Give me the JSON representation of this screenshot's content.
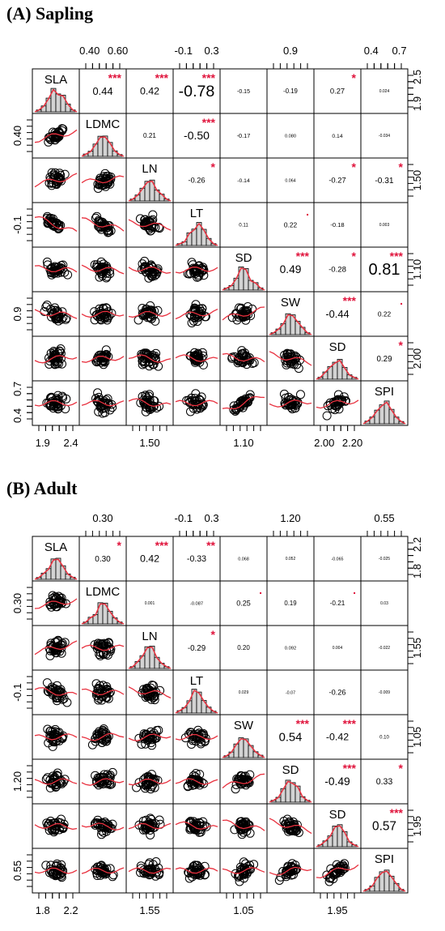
{
  "chart_data": [
    {
      "type": "scatter-matrix",
      "title": "(A) Sapling",
      "variables": [
        "SLA",
        "LDMC",
        "LN",
        "LT",
        "SD",
        "SW",
        "SD",
        "SPI"
      ],
      "top_axis_ticks": {
        "1": [
          "0.40",
          "0.60"
        ],
        "3": [
          "-0.1",
          "0.3"
        ],
        "5": [
          "0.9"
        ],
        "7": [
          "0.4",
          "0.7"
        ]
      },
      "bottom_axis_ticks": {
        "0": [
          "1.9",
          "2.4"
        ],
        "2": [
          "1.50"
        ],
        "4": [
          "1.10"
        ],
        "6": [
          "2.00",
          "2.20"
        ]
      },
      "left_axis_ticks": {
        "1": [
          "0.40"
        ],
        "3": [
          "-0.1"
        ],
        "5": [
          "0.9"
        ],
        "7": [
          "0.4",
          "0.7"
        ]
      },
      "right_axis_ticks": {
        "0": [
          "1.9",
          "2.5"
        ],
        "2": [
          "1.50"
        ],
        "4": [
          "1.10"
        ],
        "6": [
          "2.00"
        ]
      },
      "correlations": [
        {
          "row": 0,
          "col": 1,
          "r": "0.44",
          "stars": "***"
        },
        {
          "row": 0,
          "col": 2,
          "r": "0.42",
          "stars": "***"
        },
        {
          "row": 0,
          "col": 3,
          "r": "-0.78",
          "stars": "***"
        },
        {
          "row": 0,
          "col": 4,
          "r": "-0.15",
          "stars": ""
        },
        {
          "row": 0,
          "col": 5,
          "r": "-0.19",
          "stars": ""
        },
        {
          "row": 0,
          "col": 6,
          "r": "0.27",
          "stars": "*"
        },
        {
          "row": 0,
          "col": 7,
          "r": "0.024",
          "stars": ""
        },
        {
          "row": 1,
          "col": 2,
          "r": "0.21",
          "stars": ""
        },
        {
          "row": 1,
          "col": 3,
          "r": "-0.50",
          "stars": "***"
        },
        {
          "row": 1,
          "col": 4,
          "r": "-0.17",
          "stars": ""
        },
        {
          "row": 1,
          "col": 5,
          "r": "0.080",
          "stars": ""
        },
        {
          "row": 1,
          "col": 6,
          "r": "0.14",
          "stars": ""
        },
        {
          "row": 1,
          "col": 7,
          "r": "-0.034",
          "stars": ""
        },
        {
          "row": 2,
          "col": 3,
          "r": "-0.26",
          "stars": "*"
        },
        {
          "row": 2,
          "col": 4,
          "r": "-0.14",
          "stars": ""
        },
        {
          "row": 2,
          "col": 5,
          "r": "0.064",
          "stars": ""
        },
        {
          "row": 2,
          "col": 6,
          "r": "-0.27",
          "stars": "*"
        },
        {
          "row": 2,
          "col": 7,
          "r": "-0.31",
          "stars": "*"
        },
        {
          "row": 3,
          "col": 4,
          "r": "0.11",
          "stars": ""
        },
        {
          "row": 3,
          "col": 5,
          "r": "0.22",
          "stars": "."
        },
        {
          "row": 3,
          "col": 6,
          "r": "-0.18",
          "stars": ""
        },
        {
          "row": 3,
          "col": 7,
          "r": "0.003",
          "stars": ""
        },
        {
          "row": 4,
          "col": 5,
          "r": "0.49",
          "stars": "***"
        },
        {
          "row": 4,
          "col": 6,
          "r": "-0.28",
          "stars": "*"
        },
        {
          "row": 4,
          "col": 7,
          "r": "0.81",
          "stars": "***"
        },
        {
          "row": 5,
          "col": 6,
          "r": "-0.44",
          "stars": "***"
        },
        {
          "row": 5,
          "col": 7,
          "r": "0.22",
          "stars": "."
        },
        {
          "row": 6,
          "col": 7,
          "r": "0.29",
          "stars": "*"
        }
      ]
    },
    {
      "type": "scatter-matrix",
      "title": "(B) Adult",
      "variables": [
        "SLA",
        "LDMC",
        "LN",
        "LT",
        "SW",
        "SD",
        "SD",
        "SPI"
      ],
      "top_axis_ticks": {
        "1": [
          "0.30"
        ],
        "3": [
          "-0.1",
          "0.3"
        ],
        "5": [
          "1.20"
        ],
        "7": [
          "0.55"
        ]
      },
      "bottom_axis_ticks": {
        "0": [
          "1.8",
          "2.2"
        ],
        "2": [
          "1.55"
        ],
        "4": [
          "1.05"
        ],
        "6": [
          "1.95"
        ]
      },
      "left_axis_ticks": {
        "1": [
          "0.30"
        ],
        "3": [
          "-0.1"
        ],
        "5": [
          "1.20"
        ],
        "7": [
          "0.55"
        ]
      },
      "right_axis_ticks": {
        "0": [
          "1.8",
          "2.2"
        ],
        "2": [
          "1.55"
        ],
        "4": [
          "1.05"
        ],
        "6": [
          "1.95"
        ]
      },
      "correlations": [
        {
          "row": 0,
          "col": 1,
          "r": "0.30",
          "stars": "*"
        },
        {
          "row": 0,
          "col": 2,
          "r": "0.42",
          "stars": "***"
        },
        {
          "row": 0,
          "col": 3,
          "r": "-0.33",
          "stars": "**"
        },
        {
          "row": 0,
          "col": 4,
          "r": "0.068",
          "stars": ""
        },
        {
          "row": 0,
          "col": 5,
          "r": "0.052",
          "stars": ""
        },
        {
          "row": 0,
          "col": 6,
          "r": "-0.065",
          "stars": ""
        },
        {
          "row": 0,
          "col": 7,
          "r": "-0.025",
          "stars": ""
        },
        {
          "row": 1,
          "col": 2,
          "r": "0.001",
          "stars": ""
        },
        {
          "row": 1,
          "col": 3,
          "r": "-0.087",
          "stars": ""
        },
        {
          "row": 1,
          "col": 4,
          "r": "0.25",
          "stars": "."
        },
        {
          "row": 1,
          "col": 5,
          "r": "0.19",
          "stars": ""
        },
        {
          "row": 1,
          "col": 6,
          "r": "-0.21",
          "stars": "."
        },
        {
          "row": 1,
          "col": 7,
          "r": "0.03",
          "stars": ""
        },
        {
          "row": 2,
          "col": 3,
          "r": "-0.29",
          "stars": "*"
        },
        {
          "row": 2,
          "col": 4,
          "r": "0.20",
          "stars": ""
        },
        {
          "row": 2,
          "col": 5,
          "r": "0.092",
          "stars": ""
        },
        {
          "row": 2,
          "col": 6,
          "r": "0.004",
          "stars": ""
        },
        {
          "row": 2,
          "col": 7,
          "r": "-0.022",
          "stars": ""
        },
        {
          "row": 3,
          "col": 4,
          "r": "0.029",
          "stars": ""
        },
        {
          "row": 3,
          "col": 5,
          "r": "-0.07",
          "stars": ""
        },
        {
          "row": 3,
          "col": 6,
          "r": "-0.26",
          "stars": ""
        },
        {
          "row": 3,
          "col": 7,
          "r": "-0.009",
          "stars": ""
        },
        {
          "row": 4,
          "col": 5,
          "r": "0.54",
          "stars": "***"
        },
        {
          "row": 4,
          "col": 6,
          "r": "-0.42",
          "stars": "***"
        },
        {
          "row": 4,
          "col": 7,
          "r": "0.10",
          "stars": ""
        },
        {
          "row": 5,
          "col": 6,
          "r": "-0.49",
          "stars": "***"
        },
        {
          "row": 5,
          "col": 7,
          "r": "0.33",
          "stars": "*"
        },
        {
          "row": 6,
          "col": 7,
          "r": "0.57",
          "stars": "***"
        }
      ]
    }
  ]
}
